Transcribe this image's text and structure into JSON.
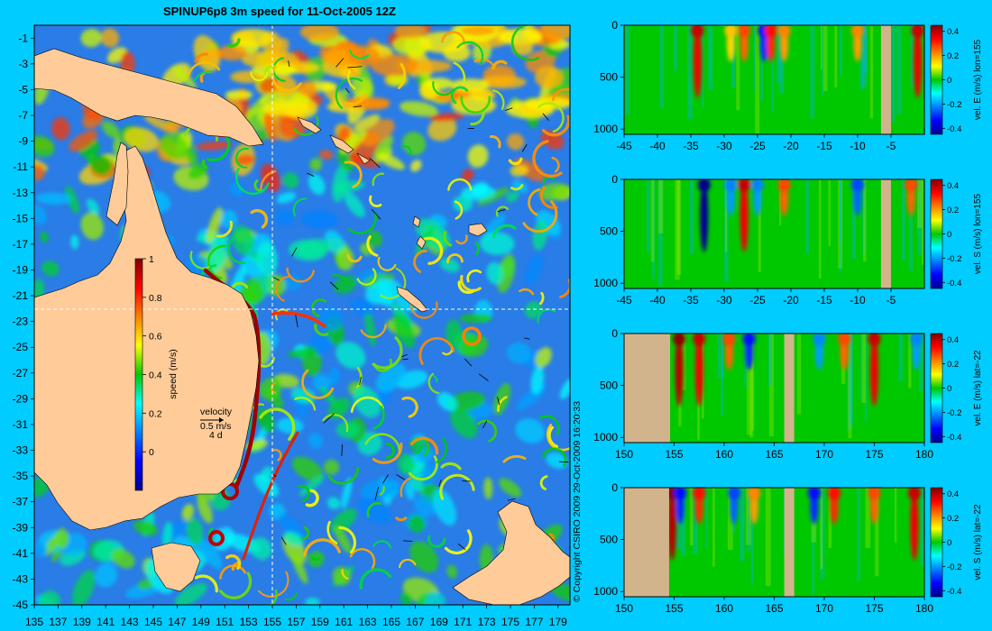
{
  "title": "SPINUP6p8 3m speed for 11-Oct-2005 12Z",
  "copyright": "© Copyright CSIRO 2009   29-Oct-2009 16:20:33",
  "colors": {
    "background": "#00ccff",
    "land": "#ffcc99",
    "section_land": "#d2b48c",
    "crosshair": "#ffffff"
  },
  "map": {
    "x_ticks": [
      135,
      137,
      139,
      141,
      143,
      145,
      147,
      149,
      151,
      153,
      155,
      157,
      159,
      161,
      163,
      165,
      167,
      169,
      171,
      173,
      175,
      177,
      179
    ],
    "y_ticks": [
      -1,
      -3,
      -5,
      -7,
      -9,
      -11,
      -13,
      -15,
      -17,
      -19,
      -21,
      -23,
      -25,
      -27,
      -29,
      -31,
      -33,
      -35,
      -37,
      -39,
      -41,
      -43,
      -45
    ],
    "xlim": [
      135,
      180
    ],
    "ylim": [
      -45,
      0
    ],
    "crosshair_lon": 155,
    "crosshair_lat": -22,
    "colorbar": {
      "label": "speed (m/s)",
      "ticks": [
        "1",
        "0.8",
        "0.6",
        "0.4",
        "0.2",
        "0"
      ],
      "range": [
        -0.2,
        1.0
      ]
    },
    "velocity_key": {
      "title": "velocity",
      "speed": "0.5 m/s",
      "duration": "4 d"
    }
  },
  "chart_data": [
    {
      "type": "heatmap",
      "name": "surface-speed-map",
      "variable": "3m speed",
      "units": "m/s",
      "xlim": [
        135,
        180
      ],
      "ylim": [
        -45,
        0
      ],
      "x_ticks": [
        135,
        137,
        139,
        141,
        143,
        145,
        147,
        149,
        151,
        153,
        155,
        157,
        159,
        161,
        163,
        165,
        167,
        169,
        171,
        173,
        175,
        177,
        179
      ],
      "y_ticks": [
        -1,
        -3,
        -5,
        -7,
        -9,
        -11,
        -13,
        -15,
        -17,
        -19,
        -21,
        -23,
        -25,
        -27,
        -29,
        -31,
        -33,
        -35,
        -37,
        -39,
        -41,
        -43,
        -45
      ],
      "color_range": [
        -0.2,
        1.0
      ]
    },
    {
      "type": "heatmap",
      "label": "vel. E (m/s) lon=155",
      "x_axis": "latitude",
      "xlim": [
        -45,
        0
      ],
      "x_ticks": [
        "-45",
        "-40",
        "-35",
        "-30",
        "-25",
        "-20",
        "-15",
        "-10",
        "-5"
      ],
      "y_ticks": [
        "0",
        "500",
        "1000"
      ],
      "ylim": [
        1050,
        0
      ],
      "cbar_ticks": [
        "0.4",
        "0.2",
        "0",
        "-0.2",
        "-0.4"
      ],
      "color_range": [
        -0.45,
        0.45
      ],
      "features": [
        {
          "x": -34,
          "value": 0.35
        },
        {
          "x": -29,
          "value": 0.15
        },
        {
          "x": -27,
          "value": 0.25
        },
        {
          "x": -24,
          "value": -0.3
        },
        {
          "x": -23,
          "value": 0.3
        },
        {
          "x": -21,
          "value": 0.2
        },
        {
          "x": -10,
          "value": 0.2
        },
        {
          "x": -1,
          "value": 0.35
        }
      ],
      "land": [
        [
          -6.5,
          -5.0
        ]
      ]
    },
    {
      "type": "heatmap",
      "label": "vel. S (m/s) lon=155",
      "x_axis": "latitude",
      "xlim": [
        -45,
        0
      ],
      "x_ticks": [
        "-45",
        "-40",
        "-35",
        "-30",
        "-25",
        "-20",
        "-15",
        "-10",
        "-5"
      ],
      "y_ticks": [
        "0",
        "500",
        "1000"
      ],
      "ylim": [
        1050,
        0
      ],
      "cbar_ticks": [
        "0.4",
        "0.2",
        "0",
        "-0.2",
        "-0.4"
      ],
      "color_range": [
        -0.45,
        0.45
      ],
      "features": [
        {
          "x": -33,
          "value": -0.45
        },
        {
          "x": -29,
          "value": -0.2
        },
        {
          "x": -27,
          "value": 0.35
        },
        {
          "x": -25,
          "value": -0.2
        },
        {
          "x": -21,
          "value": 0.25
        },
        {
          "x": -10,
          "value": -0.25
        },
        {
          "x": -2,
          "value": 0.25
        }
      ],
      "land": [
        [
          -6.5,
          -5.0
        ]
      ]
    },
    {
      "type": "heatmap",
      "label": "vel. E (m/s) lat=-22",
      "x_axis": "longitude",
      "xlim": [
        150,
        180
      ],
      "x_ticks": [
        "150",
        "155",
        "160",
        "165",
        "170",
        "175",
        "180"
      ],
      "y_ticks": [
        "0",
        "500",
        "1000"
      ],
      "ylim": [
        1050,
        0
      ],
      "cbar_ticks": [
        "0.4",
        "0.2",
        "0",
        "-0.2",
        "-0.4"
      ],
      "color_range": [
        -0.45,
        0.45
      ],
      "features": [
        {
          "x": 155.5,
          "value": 0.4
        },
        {
          "x": 157.5,
          "value": 0.35
        },
        {
          "x": 160.5,
          "value": 0.25
        },
        {
          "x": 162.5,
          "value": -0.3
        },
        {
          "x": 169.5,
          "value": -0.2
        },
        {
          "x": 172,
          "value": 0.25
        },
        {
          "x": 175,
          "value": 0.35
        },
        {
          "x": 179.2,
          "value": -0.2
        }
      ],
      "land": [
        [
          150,
          154.6
        ],
        [
          166.0,
          167.0
        ]
      ]
    },
    {
      "type": "heatmap",
      "label": "vel. S (m/s) lat=-22",
      "x_axis": "longitude",
      "xlim": [
        150,
        180
      ],
      "x_ticks": [
        "150",
        "155",
        "160",
        "165",
        "170",
        "175",
        "180"
      ],
      "y_ticks": [
        "0",
        "500",
        "1000"
      ],
      "ylim": [
        1050,
        0
      ],
      "cbar_ticks": [
        "0.4",
        "0.2",
        "0",
        "-0.2",
        "-0.4"
      ],
      "color_range": [
        -0.45,
        0.45
      ],
      "features": [
        {
          "x": 154.8,
          "value": 0.4
        },
        {
          "x": 155.6,
          "value": -0.3
        },
        {
          "x": 157.5,
          "value": 0.3
        },
        {
          "x": 161,
          "value": -0.25
        },
        {
          "x": 163,
          "value": 0.2
        },
        {
          "x": 169,
          "value": -0.3
        },
        {
          "x": 171,
          "value": 0.3
        },
        {
          "x": 175,
          "value": 0.25
        },
        {
          "x": 179,
          "value": 0.35
        }
      ],
      "land": [
        [
          150,
          154.5
        ],
        [
          166.0,
          167.0
        ]
      ]
    }
  ]
}
